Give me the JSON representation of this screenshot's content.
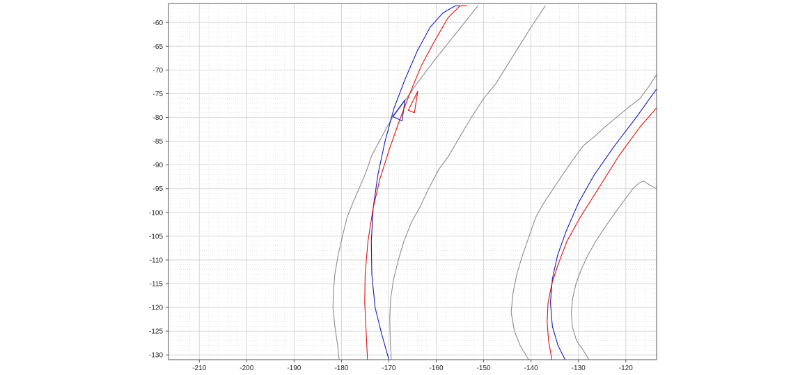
{
  "chart_data": {
    "type": "line",
    "title": "",
    "xlabel": "",
    "ylabel": "",
    "xlim": [
      -216.5,
      -113.5
    ],
    "ylim": [
      -131,
      -56
    ],
    "xticks": [
      -210,
      -200,
      -190,
      -180,
      -170,
      -160,
      -150,
      -140,
      -130,
      -120
    ],
    "yticks": [
      -60,
      -65,
      -70,
      -75,
      -80,
      -85,
      -90,
      -95,
      -100,
      -105,
      -110,
      -115,
      -120,
      -125,
      -130
    ],
    "grid": true,
    "legend": "none",
    "colors": {
      "gray": "#8c8c8c",
      "blue": "#1a1ab8",
      "red": "#e01010"
    },
    "series": [
      {
        "color": "#8c8c8c",
        "x": [
          -180.5,
          -180.8,
          -181.4,
          -181.8,
          -181.7,
          -181.4,
          -180.7,
          -179.8,
          -178.8,
          -177.6,
          -176.3,
          -175.0,
          -173.6,
          -172.0,
          -170.4,
          -169.2,
          -167.0,
          -164.9,
          -162.7,
          -160.4,
          -158.0,
          -155.6,
          -153.2,
          -151.2
        ],
        "y": [
          -131,
          -128,
          -124,
          -120,
          -117,
          -113,
          -109,
          -105,
          -101,
          -98,
          -95,
          -92,
          -88,
          -85,
          -82,
          -80,
          -77,
          -74,
          -71,
          -68,
          -65,
          -62,
          -59,
          -56.5
        ]
      },
      {
        "color": "#8c8c8c",
        "x": [
          -169.5,
          -169.7,
          -169.8,
          -169.6,
          -169.0,
          -168.0,
          -166.8,
          -165.2,
          -163.5,
          -161.6,
          -159.5,
          -157.3,
          -155.0,
          -152.6,
          -150.0,
          -147.5,
          -145.0,
          -142.5,
          -140.0,
          -138.0,
          -137.0
        ],
        "y": [
          -131,
          -127,
          -122,
          -118,
          -114,
          -110,
          -106,
          -102,
          -99,
          -95,
          -91,
          -88,
          -84,
          -80,
          -76,
          -73,
          -69,
          -65,
          -61,
          -58,
          -56.5
        ]
      },
      {
        "color": "#8c8c8c",
        "x": [
          -140.5,
          -142.3,
          -143.5,
          -144.2,
          -143.8,
          -143.0,
          -141.8,
          -140.4,
          -139.0,
          -137.3,
          -135.3,
          -133.3,
          -131.2,
          -129.0,
          -126.6,
          -124.4,
          -122.0,
          -119.6,
          -117.0,
          -114.8,
          -113.5
        ],
        "y": [
          -131,
          -128,
          -125,
          -121,
          -117,
          -113,
          -109,
          -105,
          -101,
          -98,
          -95,
          -92,
          -89,
          -86,
          -84,
          -82,
          -80,
          -78,
          -76,
          -73,
          -71
        ]
      },
      {
        "color": "#8c8c8c",
        "x": [
          -127.8,
          -129.0,
          -130.4,
          -131.3,
          -131.5,
          -131.2,
          -130.5,
          -129.4,
          -128.0,
          -126.3,
          -124.3,
          -122.2,
          -120.0,
          -118.5,
          -117.2,
          -116.2,
          -115.0,
          -113.5
        ],
        "y": [
          -131,
          -129,
          -127,
          -124,
          -121,
          -118,
          -115,
          -112,
          -109,
          -106,
          -103,
          -100,
          -97,
          -95,
          -93.8,
          -93.4,
          -94.2,
          -95
        ]
      },
      {
        "color": "#1a1ab8",
        "x": [
          -170.0,
          -171.4,
          -172.9,
          -173.6,
          -173.7,
          -173.3,
          -172.3,
          -170.8,
          -168.9,
          -166.6,
          -164.0,
          -161.3,
          -158.6,
          -156.0,
          -154.0
        ],
        "y": [
          -131,
          -126,
          -120,
          -113,
          -106,
          -99,
          -92,
          -85,
          -78,
          -72,
          -66,
          -61,
          -58,
          -56.5,
          -56.5
        ]
      },
      {
        "color": "#1a1ab8",
        "x": [
          -166.6,
          -169.2,
          -167.2,
          -166.6
        ],
        "y": [
          -76.3,
          -79.8,
          -80.7,
          -76.3
        ]
      },
      {
        "color": "#1a1ab8",
        "x": [
          -132.8,
          -134.3,
          -135.5,
          -135.9,
          -135.5,
          -134.4,
          -132.6,
          -130.0,
          -126.6,
          -122.4,
          -117.8,
          -113.5
        ],
        "y": [
          -131,
          -128,
          -124,
          -119,
          -114,
          -109,
          -104,
          -98,
          -92,
          -86,
          -80,
          -74
        ]
      },
      {
        "color": "#e01010",
        "x": [
          -174.5,
          -174.8,
          -175.1,
          -175.0,
          -174.4,
          -173.3,
          -171.9,
          -170.0,
          -167.9,
          -165.6,
          -163.1,
          -160.4,
          -157.5,
          -155.0,
          -153.5
        ],
        "y": [
          -131,
          -125,
          -119,
          -113,
          -106,
          -99,
          -93,
          -87,
          -81,
          -75,
          -69,
          -64,
          -59,
          -56.5,
          -56.5
        ]
      },
      {
        "color": "#e01010",
        "x": [
          -163.9,
          -165.9,
          -164.6,
          -163.9
        ],
        "y": [
          -74.5,
          -78.5,
          -79.0,
          -74.5
        ]
      },
      {
        "color": "#e01010",
        "x": [
          -135.6,
          -136.3,
          -136.6,
          -136.4,
          -135.6,
          -134.3,
          -132.4,
          -129.6,
          -125.8,
          -121.4,
          -117.0,
          -113.5
        ],
        "y": [
          -131,
          -127,
          -123,
          -119,
          -115,
          -111,
          -106,
          -101,
          -95,
          -88,
          -82,
          -78
        ]
      }
    ]
  }
}
